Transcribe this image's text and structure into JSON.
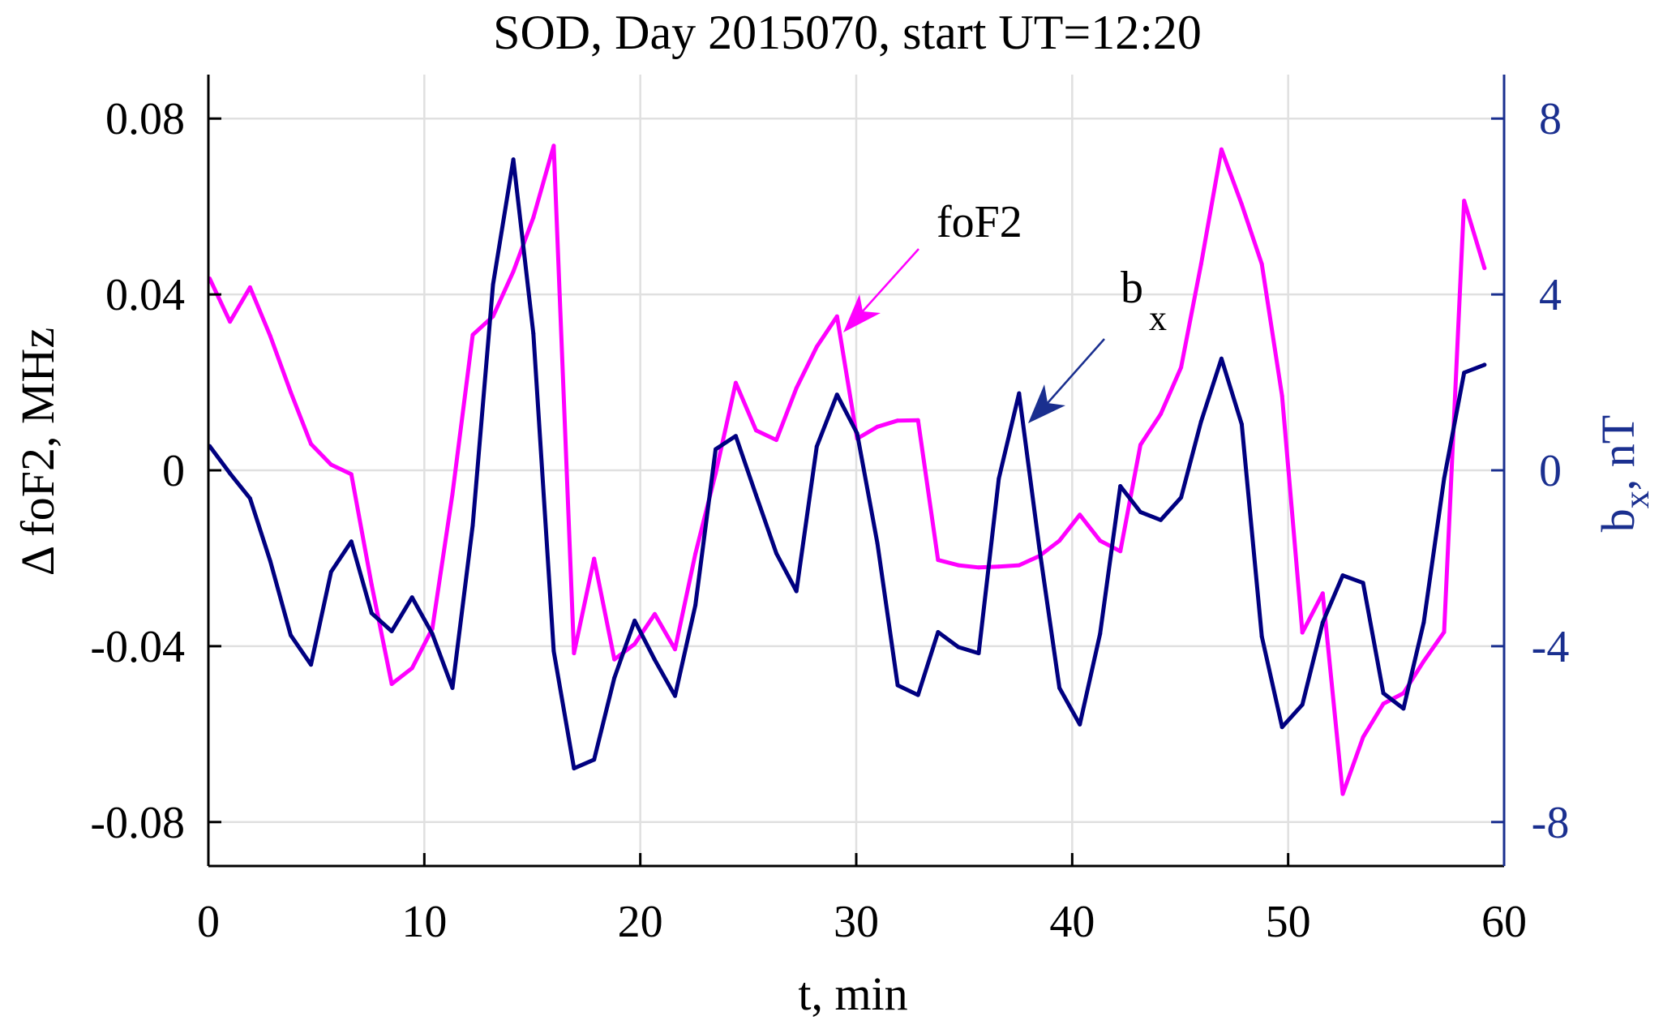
{
  "chart_data": {
    "type": "line",
    "title": "SOD, Day 2015070, start UT=12:20",
    "xlabel": "t, min",
    "ylabel": "Δ foF2, MHz",
    "ylabel_right_main": "b",
    "ylabel_right_sub": "x",
    "ylabel_right_rest": ", nT",
    "xlim": [
      0,
      60
    ],
    "ylim": [
      -0.09,
      0.09
    ],
    "ylim_right": [
      -9,
      9
    ],
    "grid": true,
    "x_ticks": [
      0,
      10,
      20,
      30,
      40,
      50,
      60
    ],
    "x_tick_labels": [
      "0",
      "10",
      "20",
      "30",
      "40",
      "50",
      "60"
    ],
    "y_ticks": [
      0.08,
      0.04,
      0,
      -0.04,
      -0.08
    ],
    "y_tick_labels": [
      "0.08",
      "0.04",
      "0",
      "-0.04",
      "-0.08"
    ],
    "y_right_ticks": [
      8,
      4,
      0,
      -4,
      -8
    ],
    "y_right_tick_labels": [
      "8",
      "4",
      "0",
      "-4",
      "-8"
    ],
    "colors": {
      "foF2": "#ff00ff",
      "bx": "#000080",
      "right_axis": "#1a2f8f",
      "grid": "#e0e0e0"
    },
    "x": [
      0.06,
      1.0,
      1.93,
      2.87,
      3.81,
      4.75,
      5.68,
      6.62,
      7.56,
      8.49,
      9.43,
      10.37,
      11.3,
      12.24,
      13.18,
      14.12,
      15.05,
      15.99,
      16.93,
      17.86,
      18.8,
      19.74,
      20.67,
      21.61,
      22.55,
      23.49,
      24.42,
      25.36,
      26.3,
      27.23,
      28.17,
      29.11,
      30.04,
      30.98,
      31.92,
      32.86,
      33.79,
      34.73,
      35.67,
      36.6,
      37.54,
      38.48,
      39.41,
      40.35,
      41.29,
      42.23,
      43.16,
      44.1,
      45.04,
      45.97,
      46.91,
      47.85,
      48.78,
      49.72,
      50.66,
      51.6,
      52.53,
      53.47,
      54.41,
      55.34,
      56.28,
      57.22,
      58.15,
      59.09
    ],
    "series": [
      {
        "name": "foF2",
        "axis": "left",
        "unit": "MHz",
        "values": [
          0.0436,
          0.0338,
          0.0416,
          0.0305,
          0.0178,
          0.006,
          0.0013,
          -0.0009,
          -0.026,
          -0.0486,
          -0.045,
          -0.036,
          -0.0054,
          0.0308,
          0.035,
          0.0452,
          0.0575,
          0.0738,
          -0.0416,
          -0.0201,
          -0.043,
          -0.0395,
          -0.0327,
          -0.0407,
          -0.019,
          -0.0007,
          0.0199,
          0.0091,
          0.0069,
          0.0187,
          0.0281,
          0.035,
          0.0072,
          0.0099,
          0.0113,
          0.0114,
          -0.0204,
          -0.0216,
          -0.0221,
          -0.0219,
          -0.0216,
          -0.0195,
          -0.016,
          -0.0101,
          -0.016,
          -0.0184,
          0.0058,
          0.0128,
          0.0234,
          0.0469,
          0.073,
          0.0605,
          0.0469,
          0.0169,
          -0.0369,
          -0.028,
          -0.0736,
          -0.0607,
          -0.0531,
          -0.0507,
          -0.0434,
          -0.0368,
          0.0613,
          0.046
        ]
      },
      {
        "name": "bx",
        "axis": "right",
        "unit": "nT",
        "values": [
          0.55,
          -0.07,
          -0.64,
          -2.07,
          -3.75,
          -4.42,
          -2.31,
          -1.62,
          -3.25,
          -3.66,
          -2.89,
          -3.72,
          -4.95,
          -1.25,
          4.22,
          7.07,
          3.11,
          -4.11,
          -6.78,
          -6.58,
          -4.72,
          -3.42,
          -4.31,
          -5.13,
          -3.07,
          0.48,
          0.78,
          -0.56,
          -1.89,
          -2.75,
          0.54,
          1.72,
          0.84,
          -1.66,
          -4.89,
          -5.11,
          -3.68,
          -4.02,
          -4.16,
          -0.19,
          1.75,
          -1.78,
          -4.95,
          -5.78,
          -3.72,
          -0.36,
          -0.95,
          -1.13,
          -0.62,
          1.11,
          2.54,
          1.05,
          -3.78,
          -5.84,
          -5.33,
          -3.46,
          -2.39,
          -2.56,
          -5.07,
          -5.42,
          -3.46,
          -0.19,
          2.22,
          2.4
        ]
      }
    ],
    "annotations": [
      {
        "text": "foF2",
        "series": "foF2",
        "points_to": {
          "x": 29.11,
          "y": 0.035
        },
        "color": "#ff00ff"
      },
      {
        "text_main": "b",
        "text_sub": "x",
        "series": "bx",
        "points_to": {
          "x": 37.54,
          "y": 1.75
        },
        "color": "#1a2f8f"
      }
    ]
  }
}
